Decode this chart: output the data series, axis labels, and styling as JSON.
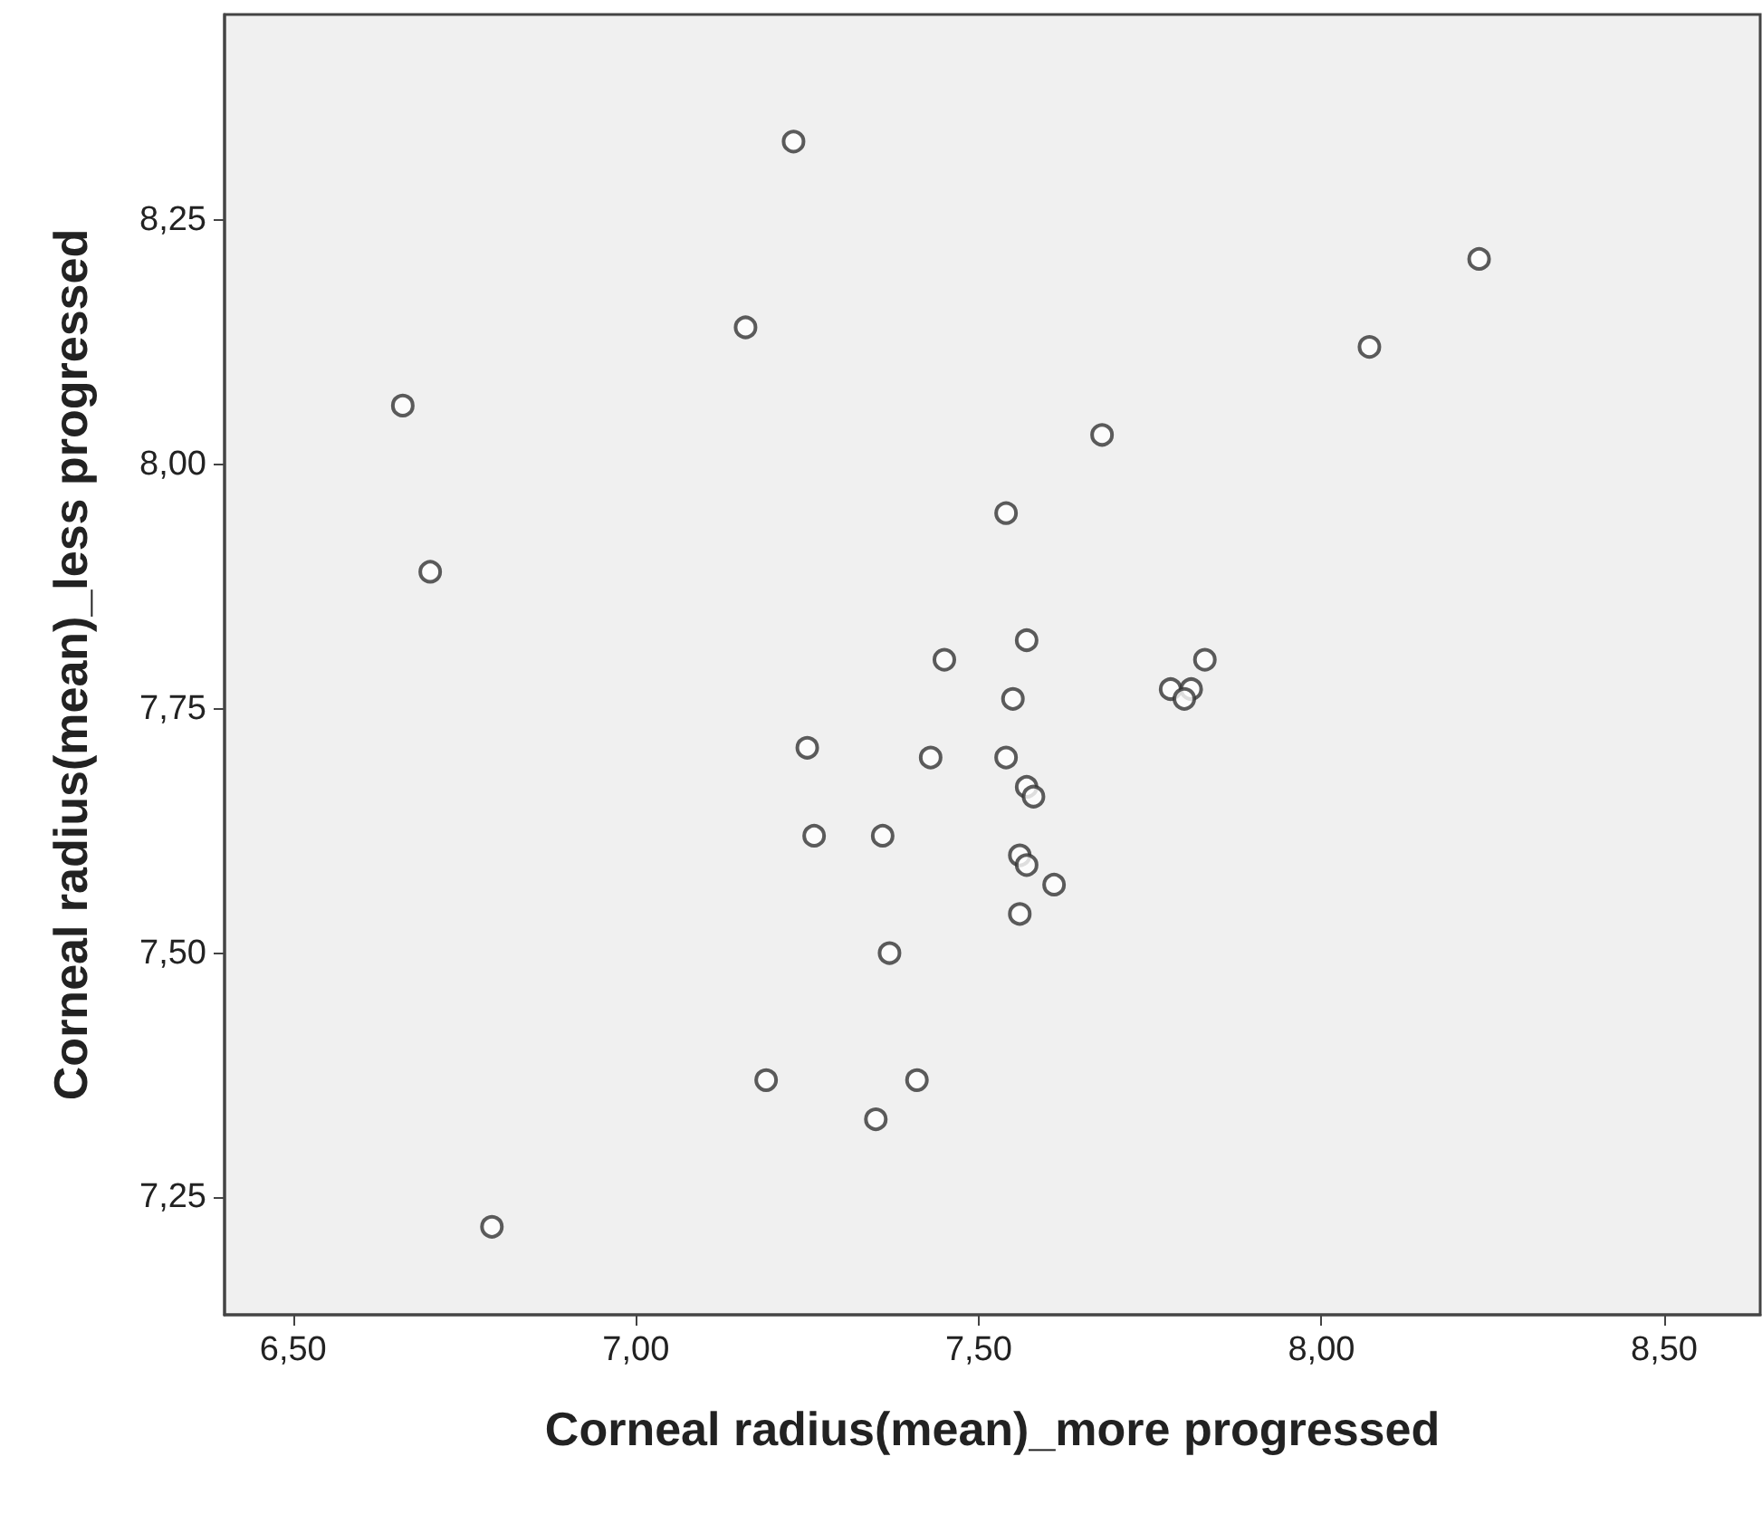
{
  "chart_data": {
    "type": "scatter",
    "xlabel": "Corneal radius(mean)_more progressed",
    "ylabel": "Corneal radius(mean)_less progressed",
    "xlim": [
      6.4,
      8.64
    ],
    "ylim": [
      7.13,
      8.46
    ],
    "xticks": [
      {
        "value": 6.5,
        "label": "6,50"
      },
      {
        "value": 7.0,
        "label": "7,00"
      },
      {
        "value": 7.5,
        "label": "7,50"
      },
      {
        "value": 8.0,
        "label": "8,00"
      },
      {
        "value": 8.5,
        "label": "8,50"
      }
    ],
    "yticks": [
      {
        "value": 7.25,
        "label": "7,25"
      },
      {
        "value": 7.5,
        "label": "7,50"
      },
      {
        "value": 7.75,
        "label": "7,75"
      },
      {
        "value": 8.0,
        "label": "8,00"
      },
      {
        "value": 8.25,
        "label": "8,25"
      }
    ],
    "grid": false,
    "marker": "circle",
    "series": [
      {
        "color": "#333333",
        "x": [
          7.23,
          8.23,
          8.07,
          7.16,
          6.66,
          7.68,
          7.54,
          6.7,
          7.57,
          7.45,
          7.83,
          7.78,
          7.81,
          7.8,
          7.55,
          7.25,
          7.43,
          7.54,
          7.57,
          7.58,
          7.26,
          7.36,
          7.56,
          7.57,
          7.61,
          7.56,
          7.37,
          7.19,
          7.41,
          7.35,
          6.79
        ],
        "values": [
          8.33,
          8.21,
          8.12,
          8.14,
          8.06,
          8.03,
          7.95,
          7.89,
          7.82,
          7.8,
          7.8,
          7.77,
          7.77,
          7.76,
          7.76,
          7.71,
          7.7,
          7.7,
          7.67,
          7.66,
          7.62,
          7.62,
          7.6,
          7.59,
          7.57,
          7.54,
          7.5,
          7.37,
          7.37,
          7.33,
          7.22
        ]
      }
    ]
  }
}
